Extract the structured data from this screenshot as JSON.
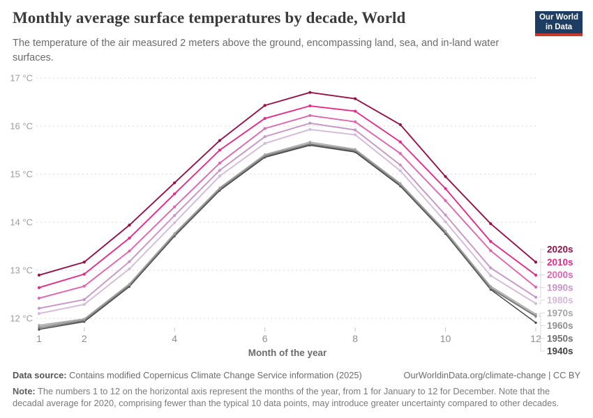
{
  "header": {
    "title": "Monthly average surface temperatures by decade, World",
    "subtitle": "The temperature of the air measured 2 meters above the ground, encompassing land, sea, and in-land water surfaces.",
    "logo": {
      "line1": "Our World",
      "line2": "in Data",
      "bg_color": "#1d3d63",
      "bar_color": "#c73a2c"
    }
  },
  "chart_data": {
    "type": "line",
    "title": "Monthly average surface temperatures by decade, World",
    "xlabel": "Month of the year",
    "ylabel": "",
    "x": [
      1,
      2,
      3,
      4,
      5,
      6,
      7,
      8,
      9,
      10,
      11,
      12
    ],
    "x_tick_labels": [
      1,
      2,
      4,
      6,
      8,
      10,
      12
    ],
    "y_ticks": [
      12,
      13,
      14,
      15,
      16,
      17
    ],
    "y_tick_suffix": " °C",
    "ylim": [
      11.6,
      17.05
    ],
    "grid": "horizontal-dashed",
    "legend_position": "right-of-line-ends",
    "series": [
      {
        "name": "2020s",
        "color": "#97104a",
        "values": [
          12.9,
          13.17,
          13.94,
          14.82,
          15.7,
          16.43,
          16.7,
          16.57,
          16.03,
          14.95,
          13.97,
          13.17
        ]
      },
      {
        "name": "2010s",
        "color": "#e7298a",
        "values": [
          12.64,
          12.92,
          13.67,
          14.59,
          15.5,
          16.16,
          16.42,
          16.31,
          15.67,
          14.7,
          13.6,
          12.9
        ]
      },
      {
        "name": "2000s",
        "color": "#df65b0",
        "values": [
          12.42,
          12.67,
          13.4,
          14.32,
          15.23,
          15.95,
          16.22,
          16.09,
          15.43,
          14.45,
          13.41,
          12.65
        ]
      },
      {
        "name": "1990s",
        "color": "#c994c7",
        "values": [
          12.21,
          12.39,
          13.18,
          14.14,
          15.08,
          15.78,
          16.06,
          15.92,
          15.19,
          14.15,
          13.05,
          12.44
        ]
      },
      {
        "name": "1980s",
        "color": "#d4b9da",
        "values": [
          12.1,
          12.29,
          13.03,
          13.99,
          14.96,
          15.64,
          15.93,
          15.82,
          15.07,
          14.01,
          12.89,
          12.31
        ]
      },
      {
        "name": "1970s",
        "color": "#a5a5a5",
        "values": [
          11.86,
          11.99,
          12.72,
          13.77,
          14.72,
          15.41,
          15.67,
          15.52,
          14.81,
          13.82,
          12.67,
          12.09
        ]
      },
      {
        "name": "1960s",
        "color": "#909090",
        "values": [
          11.83,
          11.97,
          12.7,
          13.75,
          14.7,
          15.39,
          15.64,
          15.5,
          14.79,
          13.8,
          12.64,
          12.06
        ]
      },
      {
        "name": "1950s",
        "color": "#6f6f6f",
        "values": [
          11.8,
          11.95,
          12.68,
          13.73,
          14.68,
          15.37,
          15.62,
          15.48,
          14.77,
          13.78,
          12.62,
          12.04
        ]
      },
      {
        "name": "1940s",
        "color": "#3f3f3f",
        "values": [
          11.77,
          11.93,
          12.66,
          13.71,
          14.66,
          15.35,
          15.6,
          15.46,
          14.75,
          13.76,
          12.6,
          11.91
        ]
      }
    ]
  },
  "footer": {
    "source_label": "Data source:",
    "source_text": "Contains modified Copernicus Climate Change Service information (2025)",
    "credit": "OurWorldinData.org/climate-change | CC BY",
    "note_label": "Note:",
    "note_text": "The numbers 1 to 12 on the horizontal axis represent the months of the year, from 1 for January to 12 for December. Note that the decadal average for 2020, comprising fewer than the typical 10 data points, may introduce greater uncertainty compared to other decades."
  }
}
